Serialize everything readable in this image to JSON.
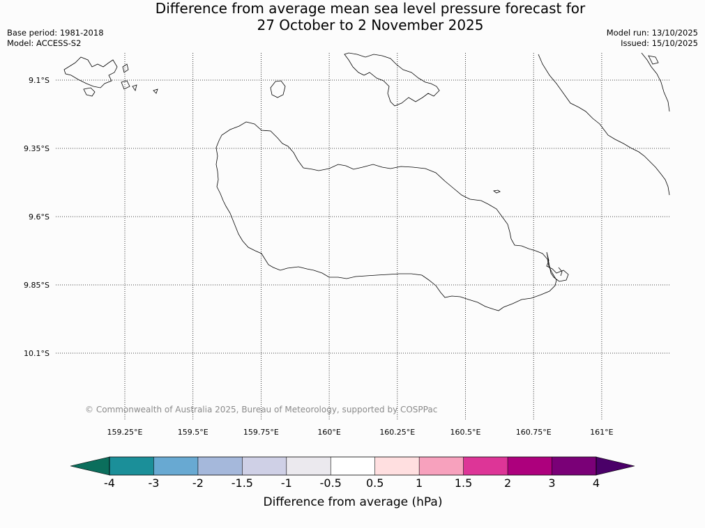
{
  "title": {
    "line1": "Difference from average mean sea level pressure forecast for",
    "line2": "27 October to 2 November 2025"
  },
  "meta": {
    "base_period": "Base period: 1981-2018",
    "model": "Model: ACCESS-S2",
    "model_run": "Model run: 13/10/2025",
    "issued": "Issued: 15/10/2025"
  },
  "map": {
    "lon_labels": [
      "159.25°E",
      "159.5°E",
      "159.75°E",
      "160°E",
      "160.25°E",
      "160.5°E",
      "160.75°E",
      "161°E"
    ],
    "lat_labels": [
      "9.1°S",
      "9.35°S",
      "9.6°S",
      "9.85°S",
      "10.1°S"
    ],
    "copyright": "© Commonwealth of Australia 2025, Bureau of Meteorology, supported by COSPPac"
  },
  "colorbar": {
    "title": "Difference from average (hPa)",
    "ticks": [
      "-4",
      "-3",
      "-2",
      "-1.5",
      "-1",
      "-0.5",
      "0.5",
      "1",
      "1.5",
      "2",
      "3",
      "4"
    ],
    "colors": [
      "#1b8f99",
      "#68a9d2",
      "#a5b8db",
      "#cfd0e6",
      "#ebe9ee",
      "#ffffff",
      "#ffdfe0",
      "#f7a1bd",
      "#dd3597",
      "#ad007d",
      "#7a0077"
    ],
    "extend_low_color": "#0b6e5c",
    "extend_high_color": "#4a0068"
  }
}
